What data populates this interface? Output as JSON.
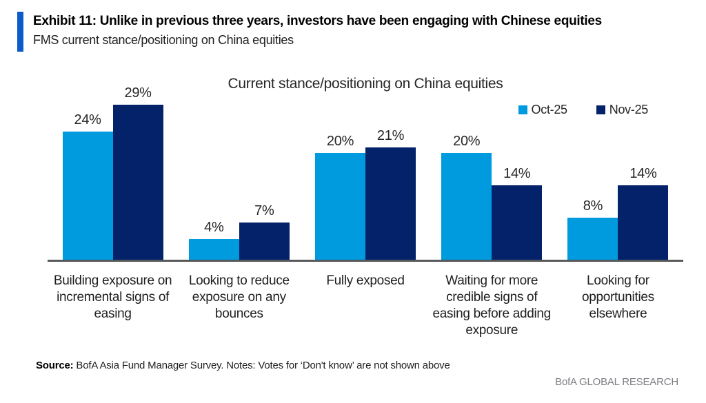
{
  "header": {
    "exhibit_title": "Exhibit 11: Unlike in previous three years, investors have been engaging with Chinese equities",
    "subtitle": "FMS current stance/positioning on China equities"
  },
  "chart_data": {
    "type": "bar",
    "title": "Current stance/positioning on China equities",
    "categories": [
      "Building exposure on incremental signs of easing",
      "Looking to reduce exposure on any bounces",
      "Fully exposed",
      "Waiting for more credible signs of easing before adding exposure",
      "Looking for opportunities elsewhere"
    ],
    "series": [
      {
        "name": "Oct-25",
        "color": "#009ade",
        "values": [
          24,
          4,
          20,
          20,
          8
        ]
      },
      {
        "name": "Nov-25",
        "color": "#042269",
        "values": [
          29,
          7,
          21,
          14,
          14
        ]
      }
    ],
    "value_suffix": "%",
    "ylim": [
      0,
      30
    ],
    "grid": false,
    "legend_position": "top-right",
    "axis_color": "#58595b"
  },
  "footer": {
    "source_label": "Source:",
    "source_text": " BofA Asia Fund Manager Survey. Notes: Votes for ‘Don't know’ are not shown above",
    "brand": "BofA GLOBAL RESEARCH"
  },
  "colors": {
    "accent_bar": "#0d5bc8",
    "oct_blue": "#009ade",
    "nov_navy": "#042269",
    "axis_gray": "#58595b",
    "brand_gray": "#7d7f83"
  }
}
